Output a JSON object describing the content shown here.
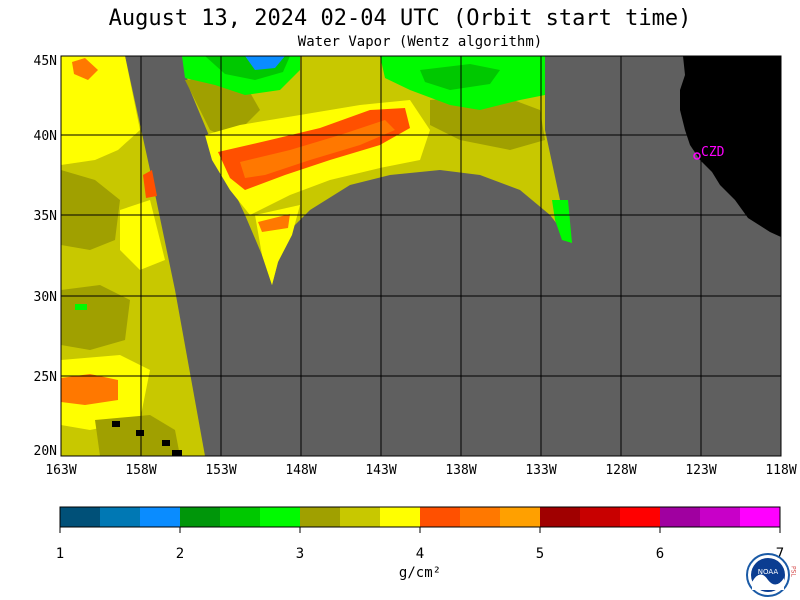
{
  "header": {
    "title": "August 13, 2024  02-04 UTC  (Orbit start time)",
    "subtitle": "Water Vapor (Wentz algorithm)"
  },
  "map": {
    "lat_labels": [
      "45N",
      "40N",
      "35N",
      "30N",
      "25N",
      "20N"
    ],
    "lon_labels": [
      "163W",
      "158W",
      "153W",
      "148W",
      "143W",
      "138W",
      "133W",
      "128W",
      "123W",
      "118W"
    ],
    "station_label": "CZD",
    "colors": {
      "no_data": "#5f5f5f",
      "land": "#000000",
      "grid": "#000000",
      "station": "#ff00ff"
    }
  },
  "colorbar": {
    "colors": [
      "#005078",
      "#0078b4",
      "#0a8cff",
      "#00960a",
      "#00c800",
      "#00fa00",
      "#a0a000",
      "#c8c800",
      "#ffff00",
      "#ff5000",
      "#ff7800",
      "#ffa000",
      "#a00000",
      "#c80000",
      "#ff0000",
      "#a000a0",
      "#c800c8",
      "#ff00ff"
    ],
    "tick_labels": [
      "1",
      "2",
      "3",
      "4",
      "5",
      "6",
      "7"
    ],
    "unit": "g/cm²"
  },
  "logo": {
    "text": "NOAA",
    "side_text": "PSL"
  }
}
